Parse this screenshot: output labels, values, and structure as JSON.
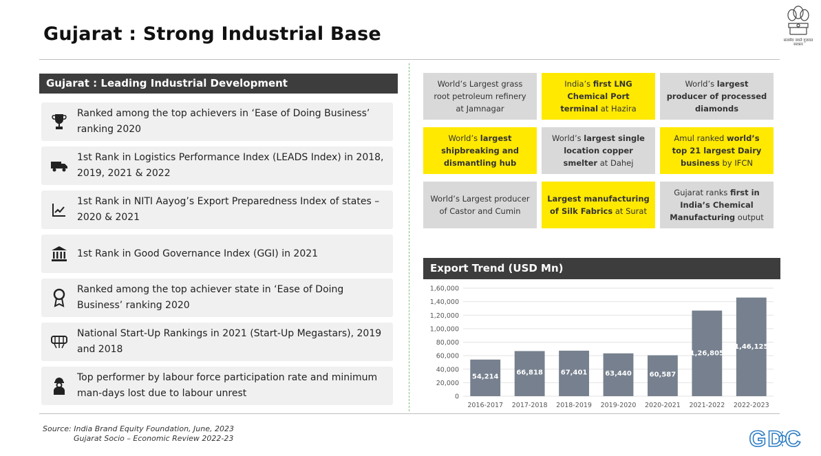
{
  "page": {
    "title": "Gujarat : Strong Industrial Base",
    "emblem_text": "सत्यमेव जयते\nगुजरात सरकार"
  },
  "left": {
    "header": "Gujarat : Leading Industrial Development",
    "items": [
      {
        "icon": "trophy-icon",
        "text": "Ranked among the top achievers in ‘Ease of Doing Business’ ranking 2020"
      },
      {
        "icon": "truck-icon",
        "text": "1st Rank in Logistics Performance Index (LEADS Index) in 2018, 2019, 2021 & 2022"
      },
      {
        "icon": "trend-chart-icon",
        "text": "1st Rank in NITI Aayog’s Export Preparedness Index of states – 2020 & 2021"
      },
      {
        "icon": "government-building-icon",
        "text": "1st Rank in Good Governance Index (GGI) in 2021"
      },
      {
        "icon": "award-ribbon-icon",
        "text": "Ranked among the top achiever state in ‘Ease of Doing Business’ ranking 2020"
      },
      {
        "icon": "startup-handshake-icon",
        "text": "National Start-Up Rankings in 2021 (Start-Up Megastars), 2019 and 2018"
      },
      {
        "icon": "worker-icon",
        "text": "Top performer by labour force participation rate and minimum man-days lost due to labour unrest"
      }
    ]
  },
  "highlights": [
    {
      "color": "gray",
      "parts": [
        {
          "t": "World’s Largest grass root petroleum refinery at Jamnagar",
          "b": false
        }
      ]
    },
    {
      "color": "yellow",
      "parts": [
        {
          "t": "India’s ",
          "b": false
        },
        {
          "t": "first LNG Chemical Port terminal",
          "b": true
        },
        {
          "t": " at Hazira",
          "b": false
        }
      ]
    },
    {
      "color": "gray",
      "parts": [
        {
          "t": "World’s ",
          "b": false
        },
        {
          "t": "largest producer of processed diamonds",
          "b": true
        }
      ]
    },
    {
      "color": "yellow",
      "parts": [
        {
          "t": "World’s ",
          "b": false
        },
        {
          "t": "largest shipbreaking and dismantling hub",
          "b": true
        }
      ]
    },
    {
      "color": "gray",
      "parts": [
        {
          "t": "World’s ",
          "b": false
        },
        {
          "t": "largest single location copper smelter",
          "b": true
        },
        {
          "t": " at Dahej",
          "b": false
        }
      ]
    },
    {
      "color": "yellow",
      "parts": [
        {
          "t": "Amul ranked ",
          "b": false
        },
        {
          "t": "world’s top 21 largest Dairy business",
          "b": true
        },
        {
          "t": " by IFCN",
          "b": false
        }
      ]
    },
    {
      "color": "gray",
      "parts": [
        {
          "t": "World’s Largest producer of Castor and Cumin",
          "b": false
        }
      ]
    },
    {
      "color": "yellow",
      "parts": [
        {
          "t": "Largest manufacturing of Silk Fabrics",
          "b": true
        },
        {
          "t": " at Surat",
          "b": false
        }
      ]
    },
    {
      "color": "gray",
      "parts": [
        {
          "t": "Gujarat ranks ",
          "b": false
        },
        {
          "t": "first in India’s Chemical Manufacturing",
          "b": true
        },
        {
          "t": " output",
          "b": false
        }
      ]
    }
  ],
  "chart_header": "Export Trend (USD Mn)",
  "chart_data": {
    "type": "bar",
    "title": "Export Trend (USD Mn)",
    "categories": [
      "2016-2017",
      "2017-2018",
      "2018-2019",
      "2019-2020",
      "2020-2021",
      "2021-2022",
      "2022-2023"
    ],
    "values": [
      54214,
      66818,
      67401,
      63440,
      60587,
      126805,
      146125
    ],
    "value_labels": [
      "54,214",
      "66,818",
      "67,401",
      "63,440",
      "60,587",
      "1,26,805",
      "1,46,125"
    ],
    "ylim": [
      0,
      160000
    ],
    "yticks": [
      0,
      20000,
      40000,
      60000,
      80000,
      100000,
      120000,
      140000,
      160000
    ],
    "ytick_labels": [
      "0",
      "20,000",
      "40,000",
      "60,000",
      "80,000",
      "1,00,000",
      "1,20,000",
      "1,40,000",
      "1,60,000"
    ],
    "grid": true,
    "bar_color": "#76808e",
    "xlabel": "",
    "ylabel": ""
  },
  "source": {
    "line1": "Source: India Brand Equity Foundation, June, 2023",
    "line2": "Gujarat Socio – Economic Review 2022-23"
  },
  "logo_text": "GDC",
  "colors": {
    "yellow": "#ffe900",
    "gray": "#d9d9d9",
    "dark": "#3d3d3d",
    "logo": "#2e7dc4"
  }
}
